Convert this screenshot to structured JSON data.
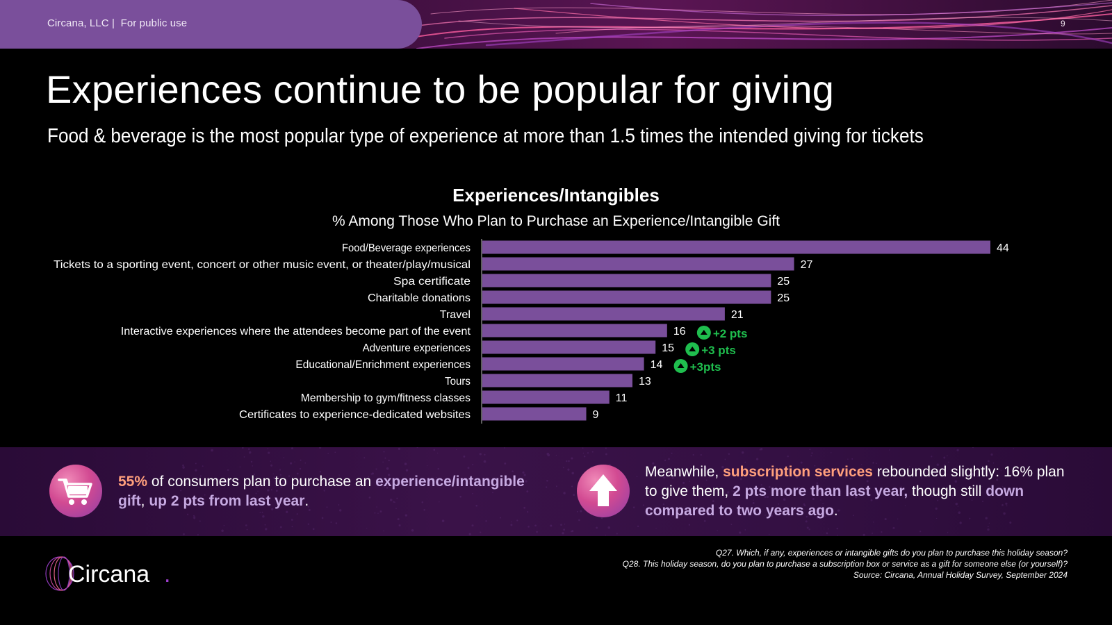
{
  "header": {
    "company": "Circana, LLC |",
    "usage": "For public use",
    "page_number": "9"
  },
  "title": "Experiences continue to be popular for giving",
  "subtitle": "Food & beverage is the most popular type of experience at more than 1.5 times the intended giving for tickets",
  "chart_data": {
    "type": "bar",
    "orientation": "horizontal",
    "title": "Experiences/Intangibles",
    "subtitle": "% Among Those Who Plan to Purchase an Experience/Intangible Gift",
    "categories": [
      "Food/Beverage experiences",
      "Tickets to a sporting event, concert or other music event, or theater/play/musical",
      "Spa certificate",
      "Charitable donations",
      "Travel",
      "Interactive experiences where the attendees become part of the event",
      "Adventure experiences",
      "Educational/Enrichment experiences",
      "Tours",
      "Membership to gym/fitness classes",
      "Certificates to experience-dedicated websites"
    ],
    "values": [
      44,
      27,
      25,
      25,
      21,
      16,
      15,
      14,
      13,
      11,
      9
    ],
    "annotations": [
      {
        "category_index": 5,
        "text": "+2 pts"
      },
      {
        "category_index": 6,
        "text": "+3 pts"
      },
      {
        "category_index": 7,
        "text": "+3pts"
      }
    ],
    "xlim": [
      0,
      44
    ],
    "bar_color": "#7a4f9b",
    "annotation_color": "#1fbe4e"
  },
  "callouts": {
    "left": {
      "icon": "shopping-cart-icon",
      "pct": "55%",
      "text1": " of consumers plan to purchase an ",
      "highlight1": "experience/intangible gift",
      "text2": ", ",
      "highlight2": "up 2 pts from last year",
      "text3": "."
    },
    "right": {
      "icon": "arrow-up-icon",
      "text1": "Meanwhile, ",
      "highlight1": "subscription services",
      "text2": " rebounded slightly: 16% plan to give them, ",
      "highlight2": "2 pts more than last year,",
      "text3": " though still ",
      "highlight3": "down compared to two years ago",
      "text4": "."
    }
  },
  "footer": {
    "logo": "Circana",
    "logo_dot": ".",
    "notes": [
      "Q27. Which, if any, experiences or intangible gifts do you plan to purchase this holiday season?",
      "Q28. This holiday season, do you plan to purchase a subscription box or service as a gift for someone else (or yourself)?",
      "Source: Circana, Annual Holiday Survey, September 2024"
    ]
  },
  "colors": {
    "accent_purple": "#7a4f9b",
    "highlight_orange": "#ff9f7c",
    "highlight_lavender": "#c6a9e1",
    "increase_green": "#1fbe4e"
  }
}
